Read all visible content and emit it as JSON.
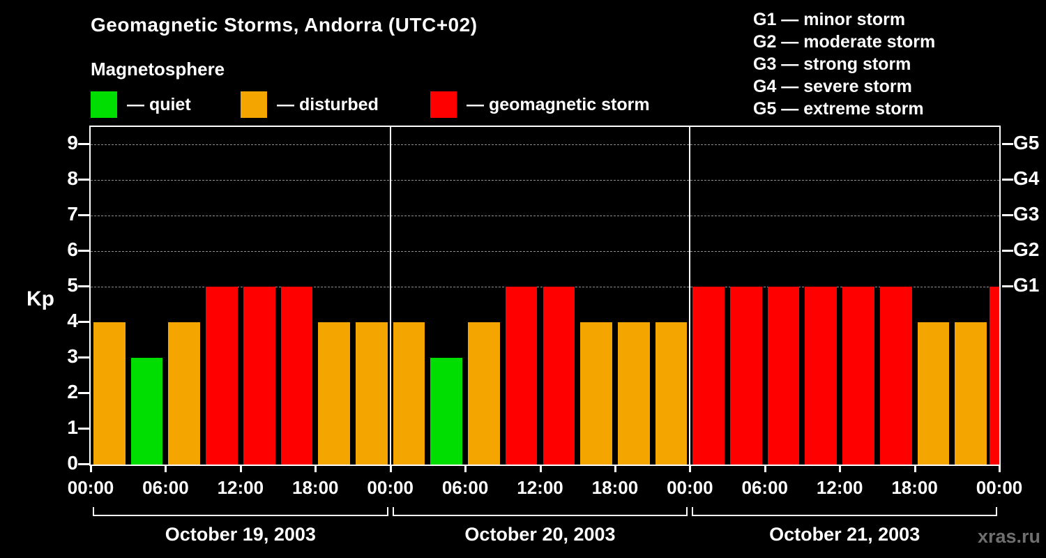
{
  "title": "Geomagnetic Storms, Andorra (UTC+02)",
  "subtitle": "Magnetosphere",
  "legend": {
    "items": [
      {
        "name": "quiet",
        "label": "— quiet",
        "color": "#00dd00"
      },
      {
        "name": "disturbed",
        "label": "— disturbed",
        "color": "#f5a500"
      },
      {
        "name": "storm",
        "label": "— geomagnetic storm",
        "color": "#ff0000"
      }
    ]
  },
  "storm_scale": {
    "items": [
      {
        "label": "G1 — minor storm"
      },
      {
        "label": "G2 — moderate storm"
      },
      {
        "label": "G3 — strong storm"
      },
      {
        "label": "G4 — severe storm"
      },
      {
        "label": "G5 — extreme storm"
      }
    ]
  },
  "watermark": "xras.ru",
  "chart_data": {
    "type": "bar",
    "title": "Geomagnetic Storms, Andorra (UTC+02)",
    "ylabel": "Kp",
    "ylim": [
      0,
      9
    ],
    "yticks": [
      0,
      1,
      2,
      3,
      4,
      5,
      6,
      7,
      8,
      9
    ],
    "gridlines_dashed_at": [
      5,
      6,
      7,
      8,
      9
    ],
    "right_axis_labels": [
      {
        "kp": 5,
        "label": "G1"
      },
      {
        "kp": 6,
        "label": "G2"
      },
      {
        "kp": 7,
        "label": "G3"
      },
      {
        "kp": 8,
        "label": "G4"
      },
      {
        "kp": 9,
        "label": "G5"
      }
    ],
    "x_tick_labels": [
      "00:00",
      "06:00",
      "12:00",
      "18:00"
    ],
    "x_final_label": "00:00",
    "bar_interval_hours": 3,
    "days": [
      {
        "date": "October 19, 2003",
        "values": [
          4,
          3,
          4,
          5,
          5,
          5,
          4,
          4
        ]
      },
      {
        "date": "October 20, 2003",
        "values": [
          4,
          3,
          4,
          5,
          5,
          4,
          4,
          4
        ]
      },
      {
        "date": "October 21, 2003",
        "values": [
          5,
          5,
          5,
          5,
          5,
          5,
          4,
          4
        ]
      }
    ],
    "partial_next_value": 5,
    "colors": {
      "quiet": "#00dd00",
      "disturbed": "#f5a500",
      "storm": "#ff0000"
    },
    "color_rule": "kp<=3 quiet(green), kp==4 disturbed(orange), kp>=5 storm(red)",
    "legend_position": "top-left",
    "grid": true
  }
}
